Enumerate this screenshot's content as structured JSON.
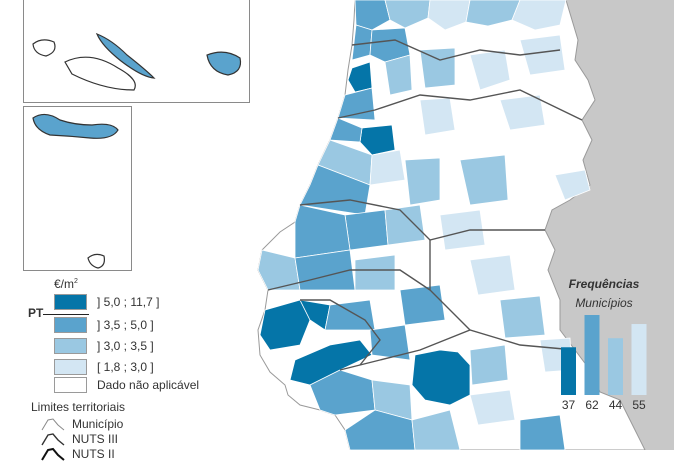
{
  "colors": {
    "class_1": "#0575a8",
    "class_2": "#5aa3cd",
    "class_3": "#9ac8e2",
    "class_4": "#d3e6f3",
    "no_data": "#ffffff",
    "spain": "#c8c8c8",
    "border": "#8a8a8a",
    "nuts": "#555555"
  },
  "legend": {
    "unit": "€/m",
    "unit_sup": "2",
    "pt_label": "PT",
    "classes": [
      {
        "label": "] 5,0 ; 11,7 ]",
        "color": "#0575a8"
      },
      {
        "label": "] 3,5 ; 5,0 ]",
        "color": "#5aa3cd"
      },
      {
        "label": "] 3,0 ; 3,5 ]",
        "color": "#9ac8e2"
      },
      {
        "label": "[ 1,8 ; 3,0 ]",
        "color": "#d3e6f3"
      },
      {
        "label": "Dado não aplicável",
        "color": "#ffffff"
      }
    ],
    "limits_title": "Limites territoriais",
    "limits": [
      {
        "label": "Município",
        "icon": "municipio-line-icon"
      },
      {
        "label": "NUTS III",
        "icon": "nuts3-line-icon"
      },
      {
        "label": "NUTS II",
        "icon": "nuts2-line-icon"
      }
    ]
  },
  "frequencies": {
    "title": "Frequências",
    "subtitle": "Municípios",
    "bars": [
      {
        "value": 37,
        "label": "37",
        "color": "#0575a8"
      },
      {
        "value": 62,
        "label": "62",
        "color": "#5aa3cd"
      },
      {
        "value": 44,
        "label": "44",
        "color": "#9ac8e2"
      },
      {
        "value": 55,
        "label": "55",
        "color": "#d3e6f3"
      }
    ]
  }
}
